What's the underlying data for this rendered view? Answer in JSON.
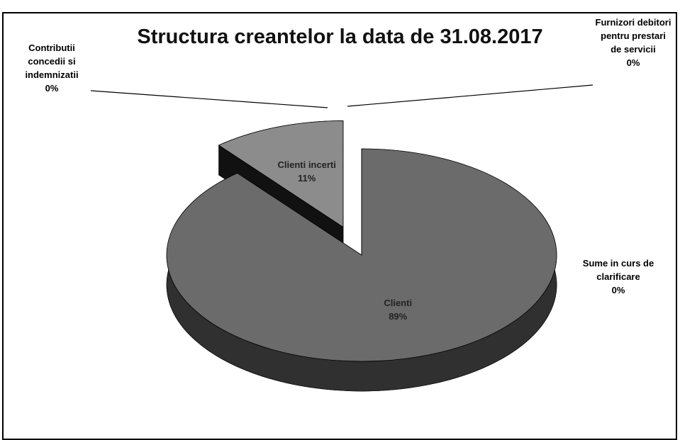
{
  "chart_data": {
    "type": "pie",
    "title": "Structura creantelor la data de 31.08.2017",
    "categories": [
      "Clienti",
      "Clienti incerti",
      "Contributii concedii si indemnizatii",
      "Furnizori debitori pentru prestari de servicii",
      "Sume in curs de clarificare"
    ],
    "values": [
      89,
      11,
      0,
      0,
      0
    ],
    "value_labels": [
      "89%",
      "11%",
      "0%",
      "0%",
      "0%"
    ],
    "colors": [
      "#6b6b6b",
      "#8c8c8c",
      "#ffffff",
      "#ffffff",
      "#ffffff"
    ]
  }
}
